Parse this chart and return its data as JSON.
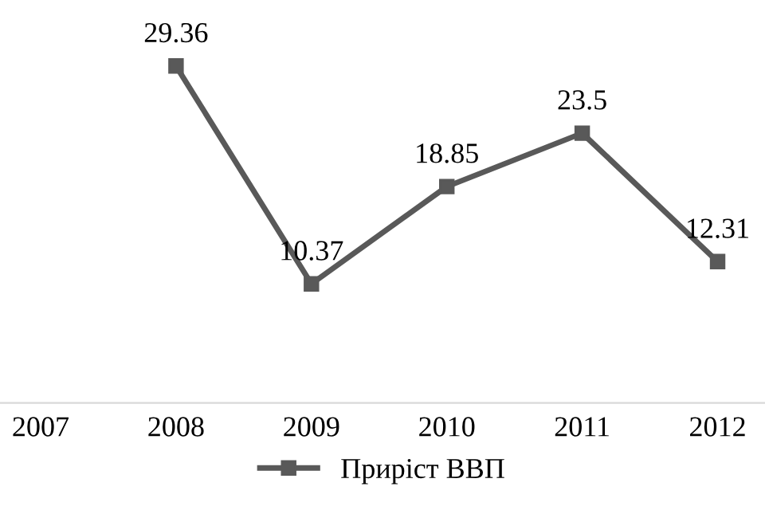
{
  "chart_data": {
    "type": "line",
    "categories": [
      "2007",
      "2008",
      "2009",
      "2010",
      "2011",
      "2012"
    ],
    "series": [
      {
        "name": "Приріст ВВП",
        "color": "#595959",
        "values": [
          null,
          29.36,
          10.37,
          18.85,
          23.5,
          12.31
        ]
      }
    ],
    "tick_labels": "x",
    "data_labels": true,
    "marker": "square",
    "line_style": "solid",
    "legend": "bottom",
    "grid": false
  }
}
